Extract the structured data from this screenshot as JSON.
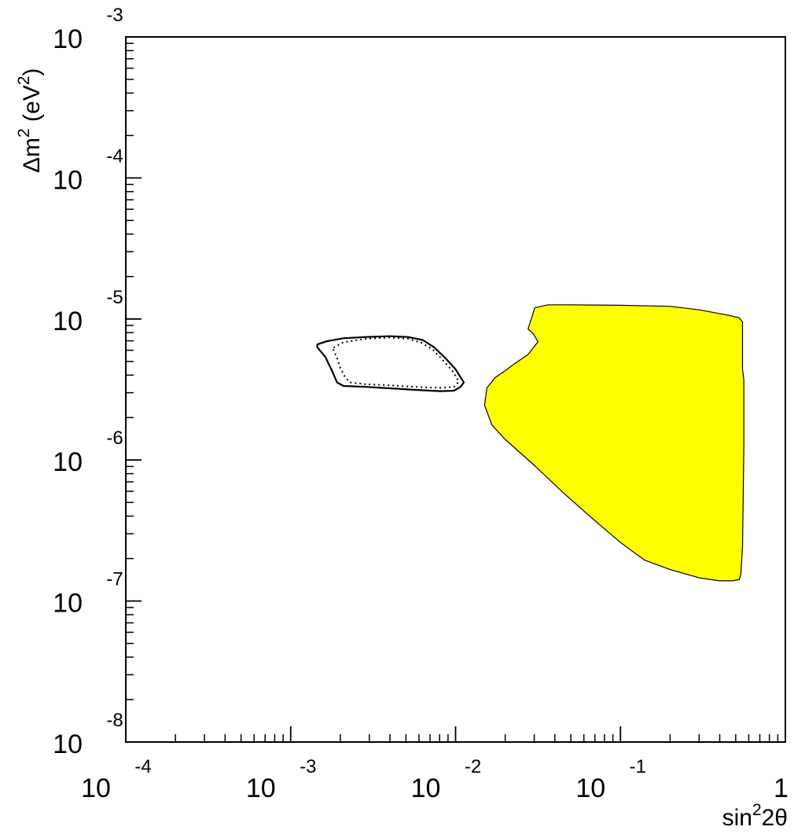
{
  "chart_data": {
    "type": "area",
    "xlabel": {
      "base": "sin",
      "sup": "2",
      "rest": "2θ"
    },
    "ylabel": {
      "prefix": "Δm",
      "sup1": "2",
      "mid": " (eV",
      "sup2": "2",
      "suffix": ")"
    },
    "x_scale": "log",
    "y_scale": "log",
    "xlim": [
      0.0001,
      1
    ],
    "ylim": [
      1e-08,
      0.001
    ],
    "grid": false,
    "x_ticks": [
      {
        "base": "10",
        "exp": "-4",
        "value": 0.0001
      },
      {
        "base": "10",
        "exp": "-3",
        "value": 0.001
      },
      {
        "base": "10",
        "exp": "-2",
        "value": 0.01
      },
      {
        "base": "10",
        "exp": "-1",
        "value": 0.1
      },
      {
        "base": "1",
        "exp": "",
        "value": 1
      }
    ],
    "y_ticks": [
      {
        "base": "10",
        "exp": "-8",
        "value": 1e-08
      },
      {
        "base": "10",
        "exp": "-7",
        "value": 1e-07
      },
      {
        "base": "10",
        "exp": "-6",
        "value": 1e-06
      },
      {
        "base": "10",
        "exp": "-5",
        "value": 1e-05
      },
      {
        "base": "10",
        "exp": "-4",
        "value": 0.0001
      },
      {
        "base": "10",
        "exp": "-3",
        "value": 0.001
      }
    ],
    "regions": [
      {
        "style": "filled",
        "fill": "#ffff00",
        "stroke": "#000000",
        "points": [
          [
            0.0288,
            1e-05
          ],
          [
            0.0302,
            1.2e-05
          ],
          [
            0.0363,
            1.26e-05
          ],
          [
            0.05,
            1.26e-05
          ],
          [
            0.1,
            1.25e-05
          ],
          [
            0.2,
            1.23e-05
          ],
          [
            0.302,
            1.16e-05
          ],
          [
            0.457,
            1.06e-05
          ],
          [
            0.525,
            1.02e-05
          ],
          [
            0.55,
            9.5e-06
          ],
          [
            0.55,
            4.4e-06
          ],
          [
            0.56,
            3.7e-06
          ],
          [
            0.56,
            1.23e-06
          ],
          [
            0.55,
            2.4e-07
          ],
          [
            0.537,
            1.55e-07
          ],
          [
            0.525,
            1.42e-07
          ],
          [
            0.479,
            1.39e-07
          ],
          [
            0.398,
            1.39e-07
          ],
          [
            0.3,
            1.46e-07
          ],
          [
            0.2,
            1.67e-07
          ],
          [
            0.14,
            1.95e-07
          ],
          [
            0.1,
            2.6e-07
          ],
          [
            0.065,
            4e-07
          ],
          [
            0.0447,
            5.9e-07
          ],
          [
            0.0302,
            9.1e-07
          ],
          [
            0.02,
            1.4e-06
          ],
          [
            0.0166,
            1.77e-06
          ],
          [
            0.015,
            2.45e-06
          ],
          [
            0.0155,
            3.25e-06
          ],
          [
            0.0174,
            3.85e-06
          ],
          [
            0.02,
            4.3e-06
          ],
          [
            0.0224,
            4.75e-06
          ],
          [
            0.0275,
            5.6e-06
          ],
          [
            0.0316,
            6.9e-06
          ],
          [
            0.0295,
            7.9e-06
          ],
          [
            0.0275,
            8.5e-06
          ],
          [
            0.0282,
            9.3e-06
          ]
        ]
      },
      {
        "style": "solid",
        "fill": "none",
        "stroke": "#000000",
        "points": [
          [
            0.00145,
            6.6e-06
          ],
          [
            0.00166,
            6.95e-06
          ],
          [
            0.00209,
            7.3e-06
          ],
          [
            0.00288,
            7.45e-06
          ],
          [
            0.00398,
            7.55e-06
          ],
          [
            0.00513,
            7.45e-06
          ],
          [
            0.00631,
            7.1e-06
          ],
          [
            0.00741,
            6.3e-06
          ],
          [
            0.00871,
            5.25e-06
          ],
          [
            0.01,
            4.4e-06
          ],
          [
            0.01122,
            3.55e-06
          ],
          [
            0.01072,
            3.3e-06
          ],
          [
            0.00977,
            3.1e-06
          ],
          [
            0.00813,
            3.08e-06
          ],
          [
            0.00631,
            3.12e-06
          ],
          [
            0.00407,
            3.22e-06
          ],
          [
            0.00288,
            3.3e-06
          ],
          [
            0.00209,
            3.35e-06
          ],
          [
            0.00191,
            3.55e-06
          ],
          [
            0.00178,
            4.3e-06
          ],
          [
            0.00162,
            5.4e-06
          ],
          [
            0.00145,
            6.3e-06
          ]
        ]
      },
      {
        "style": "dotted",
        "fill": "none",
        "stroke": "#000000",
        "points": [
          [
            0.00182,
            6.25e-06
          ],
          [
            0.00209,
            6.85e-06
          ],
          [
            0.00288,
            7.25e-06
          ],
          [
            0.00398,
            7.4e-06
          ],
          [
            0.00513,
            7.25e-06
          ],
          [
            0.00617,
            6.8e-06
          ],
          [
            0.00724,
            6.1e-06
          ],
          [
            0.00832,
            5.15e-06
          ],
          [
            0.00955,
            4.3e-06
          ],
          [
            0.01047,
            3.6e-06
          ],
          [
            0.00977,
            3.3e-06
          ],
          [
            0.00813,
            3.25e-06
          ],
          [
            0.00631,
            3.28e-06
          ],
          [
            0.00407,
            3.38e-06
          ],
          [
            0.00282,
            3.45e-06
          ],
          [
            0.00229,
            3.55e-06
          ],
          [
            0.00214,
            3.85e-06
          ],
          [
            0.002,
            4.5e-06
          ],
          [
            0.00191,
            5.3e-06
          ],
          [
            0.00182,
            6e-06
          ]
        ]
      }
    ]
  }
}
